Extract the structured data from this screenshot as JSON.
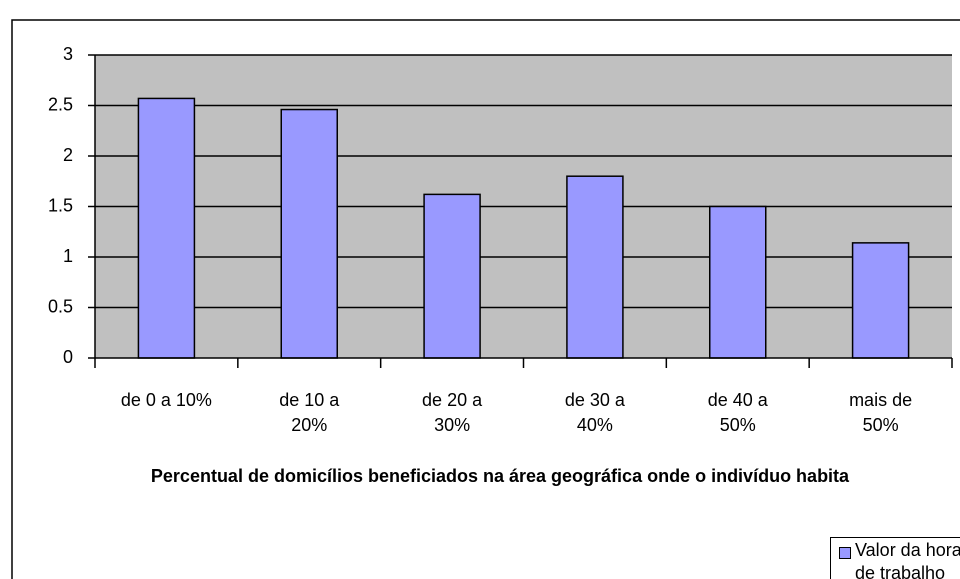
{
  "chart_data": {
    "type": "bar",
    "x_label": "Percentual de domicílios beneficiados na área geográfica onde o indivíduo habita",
    "categories": [
      "de 0 a 10%",
      "de 10 a 20%",
      "de 20 a 30%",
      "de 30 a 40%",
      "de 40 a 50%",
      "mais de 50%"
    ],
    "series": [
      {
        "name": "Valor da hora de trabalho",
        "color": "#9999ff",
        "values": [
          2.57,
          2.46,
          1.62,
          1.8,
          1.5,
          1.14
        ]
      }
    ],
    "ylim": [
      0,
      3
    ],
    "yticks": [
      0,
      0.5,
      1,
      1.5,
      2,
      2.5,
      3
    ],
    "grid": true,
    "legend": "bottom-right"
  }
}
